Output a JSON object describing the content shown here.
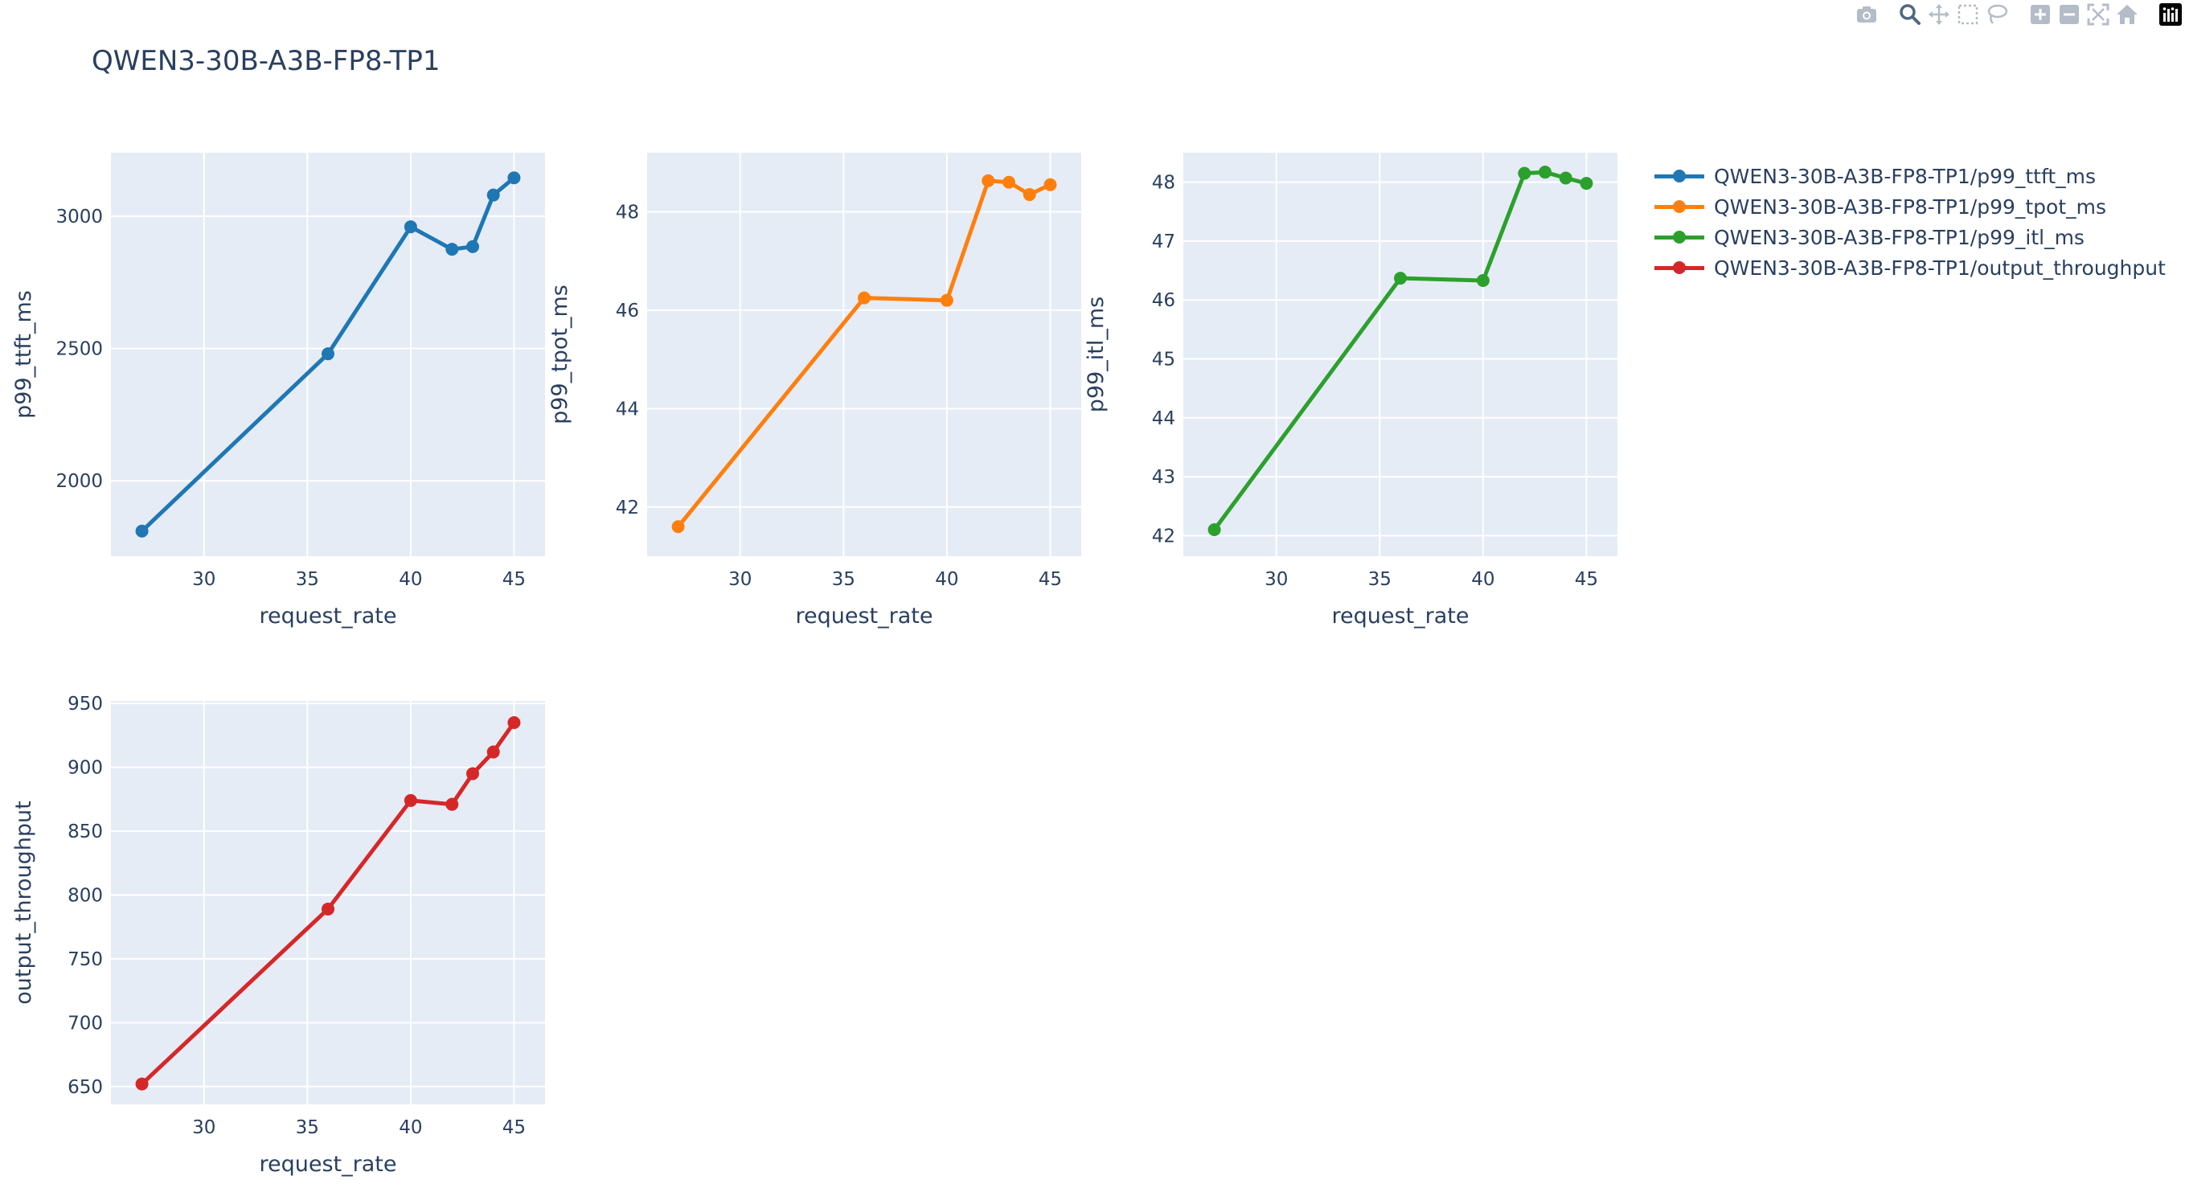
{
  "title": "QWEN3-30B-A3B-FP8-TP1",
  "modebar": {
    "buttons": [
      {
        "name": "camera-icon",
        "group": 0
      },
      {
        "name": "zoom-icon",
        "group": 1,
        "active": true
      },
      {
        "name": "pan-icon",
        "group": 1
      },
      {
        "name": "box-select-icon",
        "group": 1
      },
      {
        "name": "lasso-select-icon",
        "group": 1
      },
      {
        "name": "zoom-in-icon",
        "group": 2
      },
      {
        "name": "zoom-out-icon",
        "group": 2
      },
      {
        "name": "autoscale-icon",
        "group": 2
      },
      {
        "name": "reset-axes-icon",
        "group": 2
      },
      {
        "name": "plotly-logo-icon",
        "group": 3
      }
    ]
  },
  "colors": {
    "plot_bg": "#e5ecf6",
    "grid": "#ffffff",
    "text": "#2a3f5f",
    "modebar_icon": "#b4bcc8",
    "modebar_active": "#506784"
  },
  "legend": {
    "placement": "top-right",
    "items": [
      {
        "label": "QWEN3-30B-A3B-FP8-TP1/p99_ttft_ms",
        "color": "#1f77b4"
      },
      {
        "label": "QWEN3-30B-A3B-FP8-TP1/p99_tpot_ms",
        "color": "#ff7f0e"
      },
      {
        "label": "QWEN3-30B-A3B-FP8-TP1/p99_itl_ms",
        "color": "#2ca02c"
      },
      {
        "label": "QWEN3-30B-A3B-FP8-TP1/output_throughput",
        "color": "#d62728"
      }
    ]
  },
  "chart_data": [
    {
      "type": "line",
      "series": [
        {
          "name": "QWEN3-30B-A3B-FP8-TP1/p99_ttft_ms",
          "color": "#1f77b4",
          "x": [
            27,
            36,
            40,
            42,
            43,
            44,
            45
          ],
          "y": [
            1810,
            2480,
            2960,
            2875,
            2885,
            3080,
            3145
          ]
        }
      ],
      "xlabel": "request_rate",
      "ylabel": "p99_ttft_ms",
      "xlim": [
        25.5,
        46.5
      ],
      "ylim": [
        1715,
        3240
      ],
      "xticks": [
        30,
        35,
        40,
        45
      ],
      "yticks": [
        2000,
        2500,
        3000
      ],
      "grid": true
    },
    {
      "type": "line",
      "series": [
        {
          "name": "QWEN3-30B-A3B-FP8-TP1/p99_tpot_ms",
          "color": "#ff7f0e",
          "x": [
            27,
            36,
            40,
            42,
            43,
            44,
            45
          ],
          "y": [
            41.6,
            46.25,
            46.2,
            48.63,
            48.6,
            48.35,
            48.55
          ]
        }
      ],
      "xlabel": "request_rate",
      "ylabel": "p99_tpot_ms",
      "xlim": [
        25.5,
        46.5
      ],
      "ylim": [
        41.0,
        49.2
      ],
      "xticks": [
        30,
        35,
        40,
        45
      ],
      "yticks": [
        42,
        44,
        46,
        48
      ],
      "grid": true
    },
    {
      "type": "line",
      "series": [
        {
          "name": "QWEN3-30B-A3B-FP8-TP1/p99_itl_ms",
          "color": "#2ca02c",
          "x": [
            27,
            36,
            40,
            42,
            43,
            44,
            45
          ],
          "y": [
            42.1,
            46.37,
            46.33,
            48.15,
            48.17,
            48.07,
            47.98
          ]
        }
      ],
      "xlabel": "request_rate",
      "ylabel": "p99_itl_ms",
      "xlim": [
        25.5,
        46.5
      ],
      "ylim": [
        41.65,
        48.5
      ],
      "xticks": [
        30,
        35,
        40,
        45
      ],
      "yticks": [
        42,
        43,
        44,
        45,
        46,
        47,
        48
      ],
      "grid": true
    },
    {
      "type": "line",
      "series": [
        {
          "name": "QWEN3-30B-A3B-FP8-TP1/output_throughput",
          "color": "#d62728",
          "x": [
            27,
            36,
            40,
            42,
            43,
            44,
            45
          ],
          "y": [
            652,
            789,
            874,
            871,
            895,
            912,
            935
          ]
        }
      ],
      "xlabel": "request_rate",
      "ylabel": "output_throughput",
      "xlim": [
        25.5,
        46.5
      ],
      "ylim": [
        636,
        952
      ],
      "xticks": [
        30,
        35,
        40,
        45
      ],
      "yticks": [
        650,
        700,
        750,
        800,
        850,
        900,
        950
      ],
      "grid": true
    }
  ]
}
